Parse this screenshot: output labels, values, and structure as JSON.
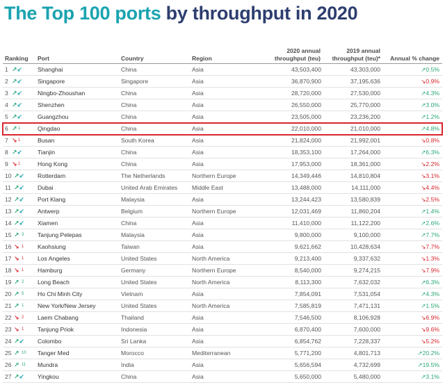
{
  "title": {
    "highlight": "The Top 100 ports",
    "rest": " by throughput in 2020"
  },
  "header": {
    "ranking": "Ranking",
    "port": "Port",
    "country": "Country",
    "region": "Region",
    "t2020_line1": "2020 annual",
    "t2020_line2": "throughput (teu)",
    "t2019_line1": "2019 annual",
    "t2019_line2": "throughput (teu)*",
    "change": "Annual % change"
  },
  "colors": {
    "up": "#2aa876",
    "down": "#d8262c",
    "title_accent": "#1aa3b0",
    "title_main": "#2d3e6f"
  },
  "highlighted_rank": "6",
  "rows": [
    {
      "rank": "1",
      "dir": "both",
      "move": "",
      "port": "Shanghai",
      "country": "China",
      "region": "Asia",
      "t2020": "43,503,400",
      "t2019": "43,303,000",
      "chg_dir": "up",
      "chg": "0.5%"
    },
    {
      "rank": "2",
      "dir": "both",
      "move": "",
      "port": "Singapore",
      "country": "Singapore",
      "region": "Asia",
      "t2020": "36,870,900",
      "t2019": "37,195,636",
      "chg_dir": "down",
      "chg": "0.9%"
    },
    {
      "rank": "3",
      "dir": "both",
      "move": "",
      "port": "Ningbo-Zhoushan",
      "country": "China",
      "region": "Asia",
      "t2020": "28,720,000",
      "t2019": "27,530,000",
      "chg_dir": "up",
      "chg": "4.3%"
    },
    {
      "rank": "4",
      "dir": "both",
      "move": "",
      "port": "Shenzhen",
      "country": "China",
      "region": "Asia",
      "t2020": "26,550,000",
      "t2019": "25,770,000",
      "chg_dir": "up",
      "chg": "3.0%"
    },
    {
      "rank": "5",
      "dir": "both",
      "move": "",
      "port": "Guangzhou",
      "country": "China",
      "region": "Asia",
      "t2020": "23,505,000",
      "t2019": "23,236,200",
      "chg_dir": "up",
      "chg": "1.2%"
    },
    {
      "rank": "6",
      "dir": "up",
      "move": "1",
      "port": "Qingdao",
      "country": "China",
      "region": "Asia",
      "t2020": "22,010,000",
      "t2019": "21,010,000",
      "chg_dir": "up",
      "chg": "4.8%"
    },
    {
      "rank": "7",
      "dir": "down",
      "move": "1",
      "port": "Busan",
      "country": "South Korea",
      "region": "Asia",
      "t2020": "21,824,000",
      "t2019": "21,992,001",
      "chg_dir": "down",
      "chg": "0.8%"
    },
    {
      "rank": "8",
      "dir": "both",
      "move": "",
      "port": "Tianjin",
      "country": "China",
      "region": "Asia",
      "t2020": "18,353,100",
      "t2019": "17,264,000",
      "chg_dir": "up",
      "chg": "6.3%"
    },
    {
      "rank": "9",
      "dir": "down",
      "move": "1",
      "port": "Hong Kong",
      "country": "China",
      "region": "Asia",
      "t2020": "17,953,000",
      "t2019": "18,361,000",
      "chg_dir": "down",
      "chg": "2.2%"
    },
    {
      "rank": "10",
      "dir": "both",
      "move": "",
      "port": "Rotterdam",
      "country": "The Netherlands",
      "region": "Northern Europe",
      "t2020": "14,349,446",
      "t2019": "14,810,804",
      "chg_dir": "down",
      "chg": "3.1%"
    },
    {
      "rank": "11",
      "dir": "both",
      "move": "",
      "port": "Dubai",
      "country": "United Arab Emirates",
      "region": "Middle East",
      "t2020": "13,488,000",
      "t2019": "14,111,000",
      "chg_dir": "down",
      "chg": "4.4%"
    },
    {
      "rank": "12",
      "dir": "both",
      "move": "",
      "port": "Port Klang",
      "country": "Malaysia",
      "region": "Asia",
      "t2020": "13,244,423",
      "t2019": "13,580,839",
      "chg_dir": "down",
      "chg": "2.5%"
    },
    {
      "rank": "13",
      "dir": "both",
      "move": "",
      "port": "Antwerp",
      "country": "Belgium",
      "region": "Northern Europe",
      "t2020": "12,031,469",
      "t2019": "11,860,204",
      "chg_dir": "up",
      "chg": "1.4%"
    },
    {
      "rank": "14",
      "dir": "both",
      "move": "",
      "port": "Xiamen",
      "country": "China",
      "region": "Asia",
      "t2020": "11,410,000",
      "t2019": "11,122,200",
      "chg_dir": "up",
      "chg": "2.6%"
    },
    {
      "rank": "15",
      "dir": "up",
      "move": "3",
      "port": "Tanjung Pelepas",
      "country": "Malaysia",
      "region": "Asia",
      "t2020": "9,800,000",
      "t2019": "9,100,000",
      "chg_dir": "up",
      "chg": "7.7%"
    },
    {
      "rank": "16",
      "dir": "down",
      "move": "1",
      "port": "Kaohsiung",
      "country": "Taiwan",
      "region": "Asia",
      "t2020": "9,621,662",
      "t2019": "10,428,634",
      "chg_dir": "down",
      "chg": "7.7%"
    },
    {
      "rank": "17",
      "dir": "down",
      "move": "1",
      "port": "Los Angeles",
      "country": "United States",
      "region": "North America",
      "t2020": "9,213,400",
      "t2019": "9,337,632",
      "chg_dir": "down",
      "chg": "1.3%"
    },
    {
      "rank": "18",
      "dir": "down",
      "move": "1",
      "port": "Hamburg",
      "country": "Germany",
      "region": "Northern Europe",
      "t2020": "8,540,000",
      "t2019": "9,274,215",
      "chg_dir": "down",
      "chg": "7.9%"
    },
    {
      "rank": "19",
      "dir": "up",
      "move": "2",
      "port": "Long Beach",
      "country": "United States",
      "region": "North America",
      "t2020": "8,113,300",
      "t2019": "7,632,032",
      "chg_dir": "up",
      "chg": "6.3%"
    },
    {
      "rank": "20",
      "dir": "up",
      "move": "5",
      "port": "Ho Chi Minh City",
      "country": "Vietnam",
      "region": "Asia",
      "t2020": "7,854,091",
      "t2019": "7,531,054",
      "chg_dir": "up",
      "chg": "4.3%"
    },
    {
      "rank": "21",
      "dir": "up",
      "move": "1",
      "port": "New York/New Jersey",
      "country": "United States",
      "region": "North America",
      "t2020": "7,585,819",
      "t2019": "7,471,131",
      "chg_dir": "up",
      "chg": "1.5%"
    },
    {
      "rank": "22",
      "dir": "down",
      "move": "2",
      "port": "Laem Chabang",
      "country": "Thailand",
      "region": "Asia",
      "t2020": "7,546,500",
      "t2019": "8,106,928",
      "chg_dir": "down",
      "chg": "6.9%"
    },
    {
      "rank": "23",
      "dir": "down",
      "move": "1",
      "port": "Tanjung Priok",
      "country": "Indonesia",
      "region": "Asia",
      "t2020": "6,870,400",
      "t2019": "7,600,000",
      "chg_dir": "down",
      "chg": "9.6%"
    },
    {
      "rank": "24",
      "dir": "both",
      "move": "",
      "port": "Colombo",
      "country": "Sri Lanka",
      "region": "Asia",
      "t2020": "6,854,762",
      "t2019": "7,228,337",
      "chg_dir": "down",
      "chg": "5.2%"
    },
    {
      "rank": "25",
      "dir": "up",
      "move": "10",
      "port": "Tanger Med",
      "country": "Morocco",
      "region": "Mediterranean",
      "t2020": "5,771,200",
      "t2019": "4,801,713",
      "chg_dir": "up",
      "chg": "20.2%"
    },
    {
      "rank": "26",
      "dir": "up",
      "move": "11",
      "port": "Mundra",
      "country": "India",
      "region": "Asia",
      "t2020": "5,656,594",
      "t2019": "4,732,699",
      "chg_dir": "up",
      "chg": "19.5%"
    },
    {
      "rank": "27",
      "dir": "both",
      "move": "",
      "port": "Yingkou",
      "country": "China",
      "region": "Asia",
      "t2020": "5,650,000",
      "t2019": "5,480,000",
      "chg_dir": "up",
      "chg": "3.1%"
    }
  ]
}
